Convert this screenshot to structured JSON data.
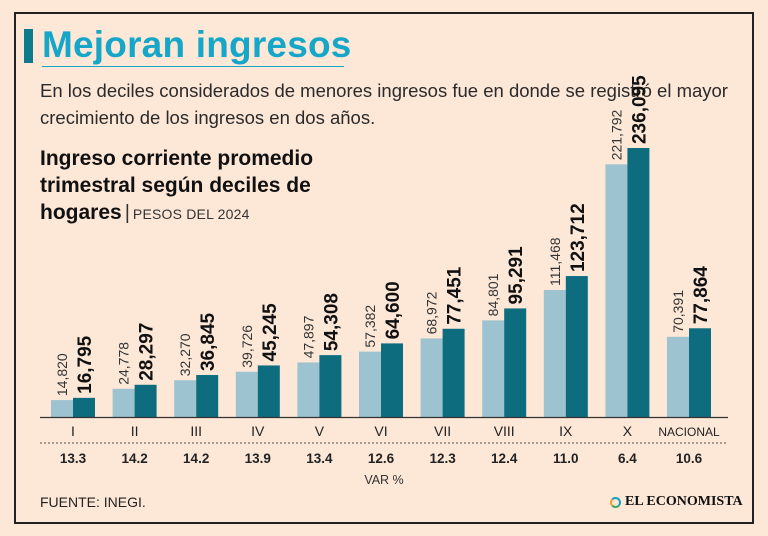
{
  "headline": "Mejoran ingresos",
  "lede": "En los deciles considerados de menores ingresos fue en donde se registró el mayor crecimiento de los ingresos en dos años.",
  "footer": {
    "source": "FUENTE: INEGI.",
    "logo": "EL ECONOMISTA"
  },
  "colors": {
    "bar_2022": "#9cc3cf",
    "bar_2024": "#0d6d7f",
    "accent": "#16a6c8",
    "background": "#fde8d8"
  },
  "chart_data": {
    "type": "bar",
    "title": "Ingreso corriente promedio trimestral según deciles de hogares",
    "subtitle": "PESOS DEL 2024",
    "categories": [
      "I",
      "II",
      "III",
      "IV",
      "V",
      "VI",
      "VII",
      "VIII",
      "IX",
      "X",
      "NACIONAL"
    ],
    "series": [
      {
        "values": [
          14820,
          24778,
          32270,
          39726,
          47897,
          57382,
          68972,
          84801,
          111468,
          221792,
          70391
        ],
        "labels": [
          "14,820",
          "24,778",
          "32,270",
          "39,726",
          "47,897",
          "57,382",
          "68,972",
          "84,801",
          "111,468",
          "221,792",
          "70,391"
        ]
      },
      {
        "values": [
          16795,
          28297,
          36845,
          45245,
          54308,
          64600,
          77451,
          95291,
          123712,
          236095,
          77864
        ],
        "labels": [
          "16,795",
          "28,297",
          "36,845",
          "45,245",
          "54,308",
          "64,600",
          "77,451",
          "95,291",
          "123,712",
          "236,095",
          "77,864"
        ]
      }
    ],
    "var_pct": [
      "13.3",
      "14.2",
      "14.2",
      "13.9",
      "13.4",
      "12.6",
      "12.3",
      "12.4",
      "11.0",
      "6.4",
      "10.6"
    ],
    "var_label": "VAR %",
    "ylim": [
      0,
      236095
    ],
    "grid": false,
    "legend": "none"
  }
}
